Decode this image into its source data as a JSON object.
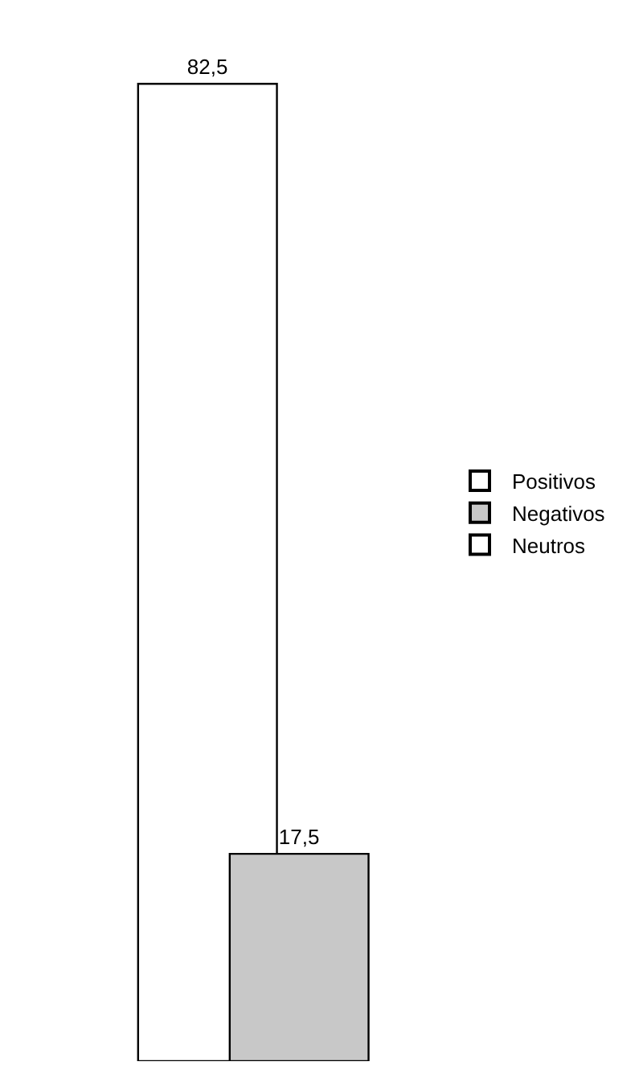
{
  "chart_data": {
    "type": "bar",
    "categories": [
      null
    ],
    "series": [
      {
        "name": "Positivos",
        "color": "#ffffff",
        "values": [
          82.5
        ],
        "value_labels": [
          "82,5"
        ]
      },
      {
        "name": "Negativos",
        "color": "#c8c8c8",
        "values": [
          17.5
        ],
        "value_labels": [
          "17,5"
        ]
      },
      {
        "name": "Neutros",
        "color": "#ffffff",
        "values": [
          null
        ]
      }
    ],
    "legend": "right"
  }
}
